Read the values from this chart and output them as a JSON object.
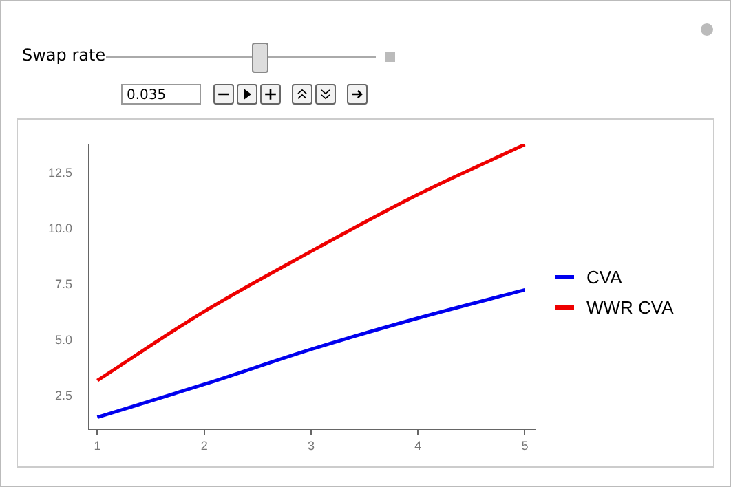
{
  "chart_data": {
    "type": "line",
    "x": [
      1,
      2,
      3,
      4,
      5
    ],
    "series": [
      {
        "name": "CVA",
        "color": "#0000ee",
        "values": [
          1.55,
          3.03,
          4.6,
          6.0,
          7.27
        ]
      },
      {
        "name": "WWR CVA",
        "color": "#ee0000",
        "values": [
          3.2,
          6.3,
          9.0,
          11.55,
          13.8
        ]
      }
    ],
    "xlim": [
      0.92,
      5.1
    ],
    "ylim": [
      1,
      13.8
    ],
    "xticks": [
      1,
      2,
      3,
      4,
      5
    ],
    "yticks": [
      2.5,
      {
        "value": 5,
        "label": "5.0"
      },
      7.5,
      {
        "value": 10,
        "label": "10.0"
      },
      12.5
    ],
    "grid": false,
    "legend": "right",
    "marker": "none",
    "line_style": "solid",
    "annotations": [
      "Swap rate",
      "0.035"
    ]
  }
}
